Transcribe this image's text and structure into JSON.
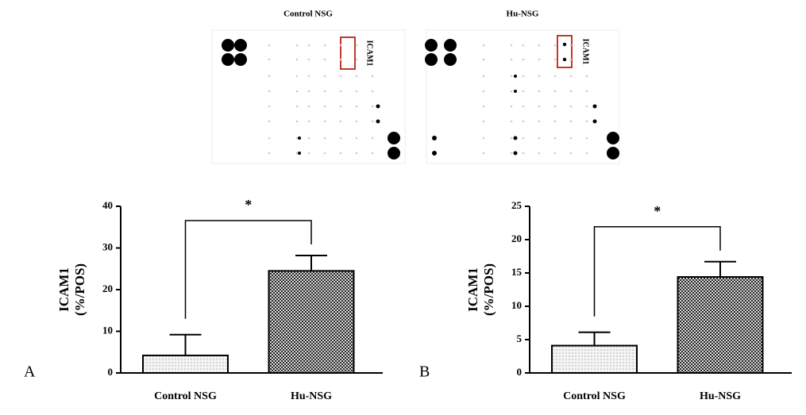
{
  "blots": [
    {
      "title": "Control NSG",
      "label": "ICAM1"
    },
    {
      "title": "Hu-NSG",
      "label": "ICAM1"
    }
  ],
  "chart_data": [
    {
      "type": "bar",
      "panel": "A",
      "ylabel": [
        "ICAM1",
        "(%/POS)"
      ],
      "categories": [
        "Control NSG",
        "Hu-NSG"
      ],
      "values": [
        4.2,
        24.5
      ],
      "errors": [
        5.0,
        3.7
      ],
      "ylim": [
        0,
        40
      ],
      "yticks": [
        0,
        10,
        20,
        30,
        40
      ],
      "annotation": "*"
    },
    {
      "type": "bar",
      "panel": "B",
      "ylabel": [
        "ICAM1",
        "(%/POS)"
      ],
      "categories": [
        "Control NSG",
        "Hu-NSG"
      ],
      "values": [
        4.1,
        14.4
      ],
      "errors": [
        2.0,
        2.3
      ],
      "ylim": [
        0,
        25
      ],
      "yticks": [
        0,
        5,
        10,
        15,
        20,
        25
      ],
      "annotation": "*"
    }
  ]
}
